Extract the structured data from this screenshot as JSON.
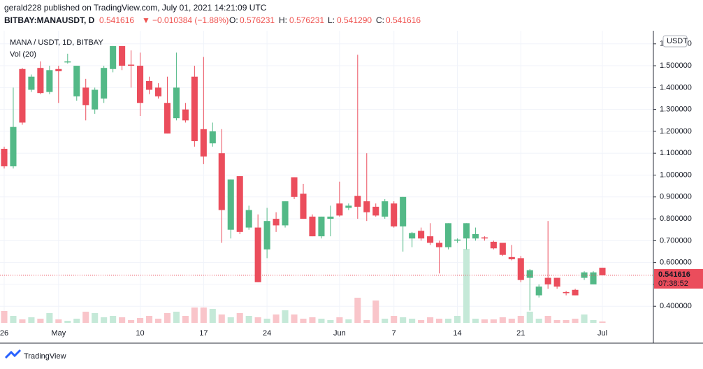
{
  "header": {
    "published": "gerald228 published on TradingView.com, July 01, 2021 14:21:09 UTC",
    "symbol": "BITBAY:MANAUSDT, D",
    "last": "0.541616",
    "arrow": "▼",
    "change": "−0.010384 (−1.88%)",
    "o_label": "O:",
    "o": "0.576231",
    "h_label": "H:",
    "h": "0.576231",
    "l_label": "L:",
    "l": "0.541290",
    "c_label": "C:",
    "c": "0.541616"
  },
  "chart_data": {
    "type": "candlestick",
    "title": "MANA / USDT, 1D, BITBAY",
    "volume_label": "Vol (20)",
    "currency": "USDT",
    "up_color": "#53b987",
    "down_color": "#eb4d5c",
    "up_volume_color": "#c5e9d8",
    "down_volume_color": "#f9c5ca",
    "categories": [
      "26",
      null,
      null,
      null,
      null,
      null,
      "May",
      null,
      null,
      null,
      null,
      null,
      null,
      null,
      null,
      "10",
      null,
      null,
      null,
      null,
      null,
      null,
      "17",
      null,
      null,
      null,
      null,
      null,
      null,
      "24",
      null,
      null,
      null,
      null,
      null,
      null,
      null,
      "Jun",
      null,
      null,
      null,
      null,
      null,
      "7",
      null,
      null,
      null,
      null,
      null,
      null,
      "14",
      null,
      null,
      null,
      null,
      null,
      null,
      "21",
      null,
      null,
      null,
      null,
      null,
      null,
      null,
      null,
      "Jul"
    ],
    "open": [
      1.12,
      1.04,
      1.485,
      1.39,
      1.49,
      1.38,
      1.485,
      1.515,
      1.36,
      1.4,
      1.3,
      1.35,
      1.485,
      1.59,
      1.505,
      1.5,
      1.43,
      1.4,
      1.33,
      1.26,
      1.3,
      1.45,
      1.21,
      1.145,
      1.1,
      0.75,
      0.995,
      0.76,
      0.76,
      0.66,
      0.8,
      0.77,
      0.99,
      0.915,
      0.81,
      0.72,
      0.8,
      0.87,
      0.85,
      0.905,
      0.88,
      0.855,
      0.81,
      0.87,
      0.765,
      0.71,
      0.745,
      0.72,
      0.69,
      0.67,
      0.7,
      0.71,
      0.71,
      0.715,
      0.695,
      0.69,
      0.625,
      0.62,
      0.53,
      0.45,
      0.53,
      0.53,
      0.465,
      0.475,
      0.53,
      0.5,
      0.576231
    ],
    "high": [
      1.13,
      1.4,
      1.49,
      1.46,
      1.52,
      1.5,
      1.5,
      1.555,
      1.5,
      1.44,
      1.4,
      1.5,
      1.59,
      1.59,
      1.57,
      1.56,
      1.45,
      1.42,
      1.45,
      1.56,
      1.33,
      1.5,
      1.54,
      1.24,
      1.21,
      0.98,
      0.995,
      0.86,
      0.82,
      0.85,
      0.83,
      0.88,
      0.99,
      0.96,
      0.82,
      0.81,
      0.86,
      0.97,
      0.87,
      1.55,
      1.1,
      0.87,
      0.89,
      0.88,
      0.9,
      0.74,
      0.76,
      0.78,
      0.7,
      0.78,
      0.71,
      0.78,
      0.76,
      0.72,
      0.7,
      0.69,
      0.68,
      0.63,
      0.57,
      0.5,
      0.79,
      0.53,
      0.47,
      0.48,
      0.56,
      0.56,
      0.576231
    ],
    "low": [
      1.03,
      1.03,
      1.23,
      1.38,
      1.37,
      1.37,
      1.33,
      1.51,
      1.34,
      1.25,
      1.28,
      1.33,
      1.47,
      1.48,
      1.4,
      1.27,
      1.37,
      1.35,
      1.19,
      1.25,
      1.24,
      1.13,
      1.05,
      1.13,
      0.69,
      0.71,
      0.73,
      0.75,
      0.51,
      0.62,
      0.74,
      0.76,
      0.89,
      0.8,
      0.72,
      0.71,
      0.72,
      0.81,
      0.84,
      0.8,
      0.79,
      0.81,
      0.8,
      0.76,
      0.65,
      0.67,
      0.7,
      0.68,
      0.55,
      0.66,
      0.69,
      0.66,
      0.7,
      0.7,
      0.66,
      0.63,
      0.61,
      0.51,
      0.38,
      0.44,
      0.48,
      0.48,
      0.45,
      0.45,
      0.52,
      0.5,
      0.54129
    ],
    "close": [
      1.04,
      1.22,
      1.24,
      1.45,
      1.375,
      1.48,
      1.475,
      1.52,
      1.5,
      1.32,
      1.39,
      1.49,
      1.59,
      1.5,
      1.5,
      1.33,
      1.39,
      1.36,
      1.19,
      1.4,
      1.25,
      1.155,
      1.085,
      1.2,
      0.84,
      0.98,
      0.74,
      0.84,
      0.51,
      0.79,
      0.77,
      0.88,
      0.9,
      0.8,
      0.72,
      0.81,
      0.81,
      0.815,
      0.86,
      0.855,
      0.83,
      0.815,
      0.88,
      0.765,
      0.9,
      0.735,
      0.71,
      0.69,
      0.67,
      0.78,
      0.705,
      0.78,
      0.73,
      0.71,
      0.665,
      0.635,
      0.615,
      0.52,
      0.565,
      0.49,
      0.5,
      0.49,
      0.46,
      0.45,
      0.555,
      0.555,
      0.541616
    ],
    "volume": [
      17,
      10,
      5,
      8,
      6,
      14,
      5,
      3,
      6,
      16,
      14,
      8,
      10,
      8,
      4,
      7,
      10,
      6,
      14,
      16,
      10,
      22,
      22,
      20,
      12,
      8,
      14,
      10,
      8,
      6,
      12,
      18,
      12,
      6,
      8,
      6,
      4,
      8,
      5,
      36,
      4,
      32,
      6,
      10,
      8,
      6,
      4,
      8,
      6,
      6,
      10,
      106,
      6,
      5,
      5,
      8,
      6,
      10,
      16,
      6,
      10,
      4,
      4,
      6,
      12,
      4,
      2
    ],
    "ylim": [
      0.324,
      1.66
    ],
    "yticks": [
      {
        "value": 0.4,
        "label": "0.400000"
      },
      {
        "value": 0.5,
        "label": "0.500000"
      },
      {
        "value": 0.6,
        "label": "0.600000"
      },
      {
        "value": 0.7,
        "label": "0.700000"
      },
      {
        "value": 0.8,
        "label": "0.800000"
      },
      {
        "value": 0.9,
        "label": "0.900000"
      },
      {
        "value": 1.0,
        "label": "1.000000"
      },
      {
        "value": 1.1,
        "label": "1.100000"
      },
      {
        "value": 1.2,
        "label": "1.200000"
      },
      {
        "value": 1.3,
        "label": "1.300000"
      },
      {
        "value": 1.4,
        "label": "1.400000"
      },
      {
        "value": 1.5,
        "label": "1.500000"
      },
      {
        "value": 1.6,
        "label": "1.600000"
      }
    ],
    "last_price": 0.541616,
    "countdown": "07:38:52",
    "grid": true
  },
  "footer": {
    "brand": "TradingView"
  }
}
